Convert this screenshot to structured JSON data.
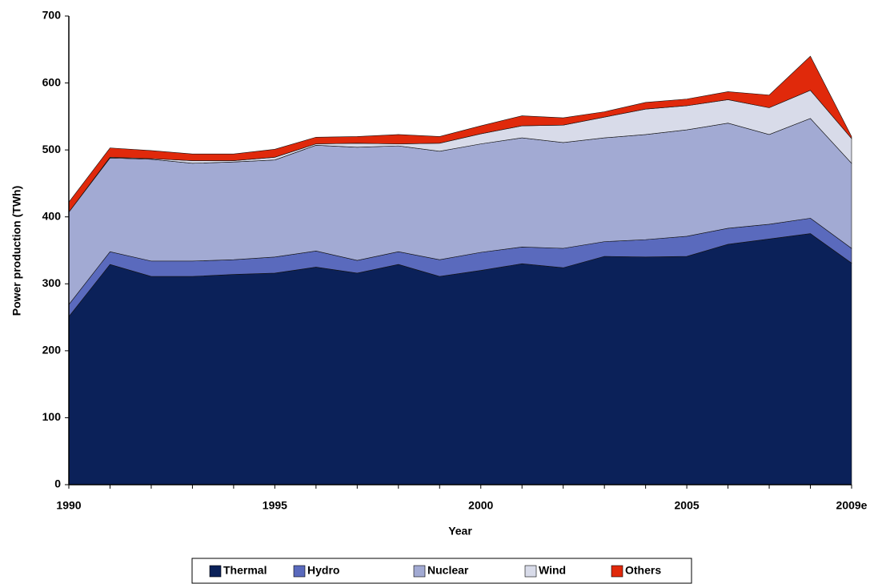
{
  "chart_data": {
    "type": "stacked-area",
    "x_label": "Year",
    "y_label": "Power production (TWh)",
    "categories": [
      "1990",
      null,
      null,
      null,
      null,
      "1995",
      null,
      null,
      null,
      null,
      "2000",
      null,
      null,
      null,
      null,
      "2005",
      null,
      null,
      null,
      "2009e"
    ],
    "series": [
      {
        "name": "Thermal",
        "color": "#0b2159",
        "values": [
          251,
          329,
          311,
          311,
          314,
          316,
          325,
          316,
          329,
          311,
          320,
          330,
          324,
          341,
          340,
          341,
          359,
          367,
          375,
          331
        ]
      },
      {
        "name": "Hydro",
        "color": "#5a6abd",
        "values": [
          18,
          19,
          23,
          23,
          22,
          24,
          24,
          19,
          19,
          25,
          27,
          25,
          29,
          22,
          26,
          30,
          24,
          22,
          23,
          22
        ]
      },
      {
        "name": "Nuclear",
        "color": "#a2aad3",
        "values": [
          138,
          140,
          152,
          146,
          146,
          145,
          158,
          169,
          158,
          162,
          162,
          163,
          158,
          155,
          157,
          159,
          157,
          134,
          149,
          127
        ]
      },
      {
        "name": "Wind",
        "color": "#d8dbe9",
        "values": [
          0,
          1,
          1,
          4,
          2,
          4,
          2,
          6,
          3,
          12,
          15,
          18,
          26,
          31,
          38,
          36,
          35,
          40,
          42,
          37
        ]
      },
      {
        "name": "Others",
        "color": "#e0290b",
        "values": [
          15,
          14,
          12,
          10,
          10,
          12,
          10,
          10,
          14,
          10,
          12,
          15,
          11,
          8,
          10,
          10,
          12,
          19,
          51,
          3
        ]
      }
    ],
    "ylim": [
      0,
      700
    ],
    "yticks": [
      0,
      100,
      200,
      300,
      400,
      500,
      600,
      700
    ],
    "legend": "bottom"
  }
}
